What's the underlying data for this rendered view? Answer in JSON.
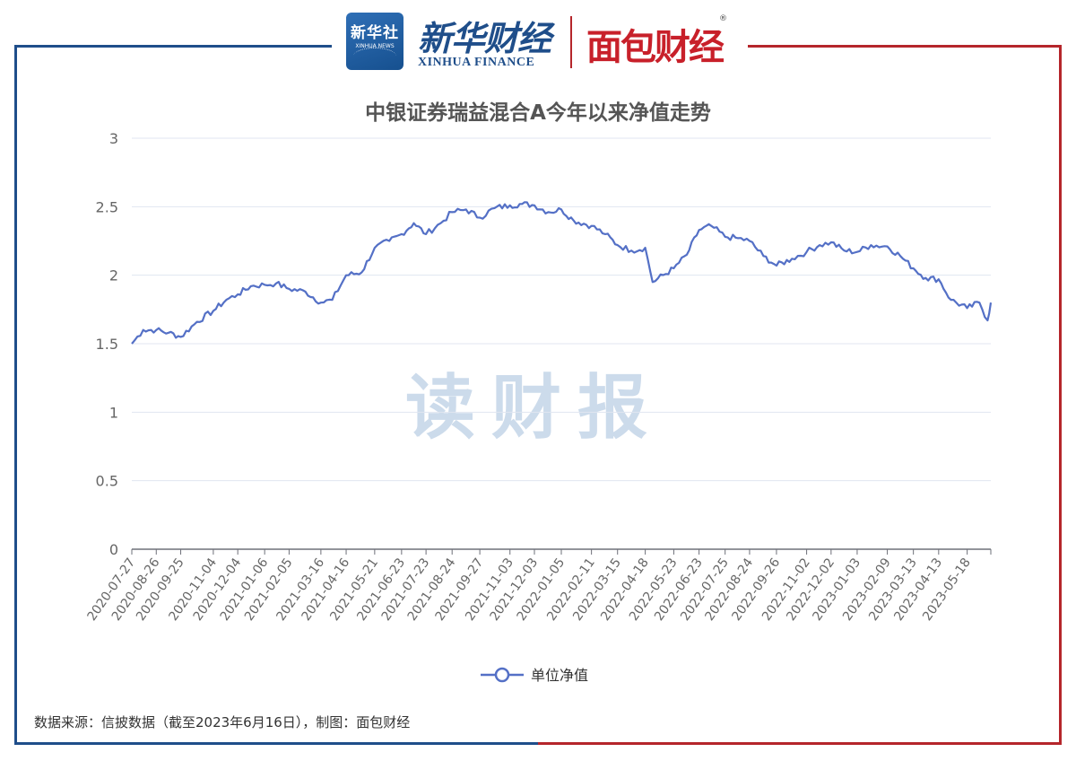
{
  "header": {
    "xinhua_logo_cn": "新华社",
    "xinhua_logo_en": "XINHUA NEWS",
    "finance_cn": "新华财经",
    "finance_en": "XINHUA FINANCE",
    "brand": "面包财经",
    "registered_mark": "®"
  },
  "watermark": "读财报",
  "source_note": "数据来源：信披数据（截至2023年6月16日），制图：面包财经",
  "chart_data": {
    "type": "line",
    "title": "中银证券瑞益混合A今年以来净值走势",
    "xlabel": "",
    "ylabel": "",
    "ylim": [
      0,
      3
    ],
    "yticks": [
      "0",
      "0.5",
      "1",
      "1.5",
      "2",
      "2.5",
      "3"
    ],
    "xticks": [
      "2020-07-27",
      "2020-08-26",
      "2020-09-25",
      "2020-11-04",
      "2020-12-04",
      "2021-01-06",
      "2021-02-05",
      "2021-03-16",
      "2021-04-16",
      "2021-05-21",
      "2021-06-23",
      "2021-07-23",
      "2021-08-24",
      "2021-09-27",
      "2021-11-03",
      "2021-12-03",
      "2022-01-05",
      "2022-02-11",
      "2022-03-15",
      "2022-04-18",
      "2022-05-23",
      "2022-06-23",
      "2022-07-25",
      "2022-08-24",
      "2022-09-26",
      "2022-11-02",
      "2022-12-02",
      "2023-01-03",
      "2023-02-09",
      "2023-03-13",
      "2023-04-13",
      "2023-05-18"
    ],
    "grid": true,
    "legend_position": "bottom-center",
    "color": "#5470c6",
    "series": [
      {
        "name": "单位净值",
        "x": [
          "2020-07-27",
          "2020-08-10",
          "2020-08-26",
          "2020-09-10",
          "2020-09-25",
          "2020-10-15",
          "2020-11-04",
          "2020-11-20",
          "2020-12-04",
          "2020-12-20",
          "2021-01-06",
          "2021-01-20",
          "2021-02-05",
          "2021-02-25",
          "2021-03-16",
          "2021-03-30",
          "2021-04-16",
          "2021-05-05",
          "2021-05-21",
          "2021-06-08",
          "2021-06-23",
          "2021-07-08",
          "2021-07-23",
          "2021-08-10",
          "2021-08-24",
          "2021-09-10",
          "2021-09-27",
          "2021-10-15",
          "2021-11-03",
          "2021-11-18",
          "2021-12-03",
          "2021-12-20",
          "2022-01-05",
          "2022-01-20",
          "2022-02-11",
          "2022-02-28",
          "2022-03-15",
          "2022-04-01",
          "2022-04-18",
          "2022-04-27",
          "2022-05-23",
          "2022-06-08",
          "2022-06-23",
          "2022-07-08",
          "2022-07-25",
          "2022-08-10",
          "2022-08-24",
          "2022-09-10",
          "2022-09-26",
          "2022-10-15",
          "2022-11-02",
          "2022-11-18",
          "2022-12-02",
          "2022-12-18",
          "2023-01-03",
          "2023-01-20",
          "2023-02-09",
          "2023-02-25",
          "2023-03-13",
          "2023-03-28",
          "2023-04-13",
          "2023-04-28",
          "2023-05-18",
          "2023-06-02",
          "2023-06-12",
          "2023-06-16"
        ],
        "values": [
          1.5,
          1.6,
          1.6,
          1.58,
          1.55,
          1.66,
          1.74,
          1.82,
          1.86,
          1.92,
          1.93,
          1.94,
          1.9,
          1.88,
          1.8,
          1.82,
          2.0,
          2.02,
          2.2,
          2.25,
          2.3,
          2.38,
          2.3,
          2.38,
          2.46,
          2.48,
          2.42,
          2.49,
          2.51,
          2.52,
          2.51,
          2.46,
          2.48,
          2.4,
          2.36,
          2.3,
          2.22,
          2.18,
          2.2,
          1.95,
          2.05,
          2.15,
          2.33,
          2.36,
          2.28,
          2.27,
          2.25,
          2.14,
          2.07,
          2.12,
          2.17,
          2.22,
          2.24,
          2.18,
          2.17,
          2.22,
          2.21,
          2.14,
          2.05,
          1.98,
          1.97,
          1.82,
          1.76,
          1.8,
          1.67,
          1.8
        ]
      }
    ]
  }
}
